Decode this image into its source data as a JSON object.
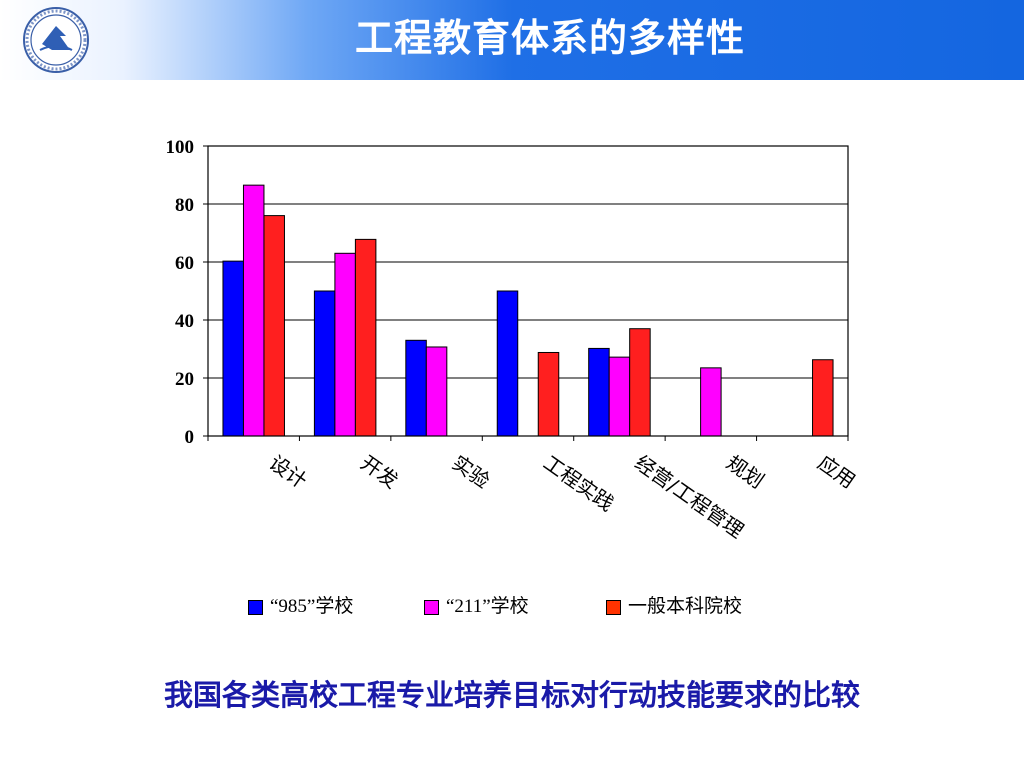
{
  "header": {
    "title": "工程教育体系的多样性"
  },
  "caption": "我国各类高校工程专业培养目标对行动技能要求的比较",
  "legend": {
    "items": [
      {
        "label": "“985”学校",
        "color": "#0000ff"
      },
      {
        "label": "“211”学校",
        "color": "#ff00ff"
      },
      {
        "label": "一般本科院校",
        "color": "#ff1f1f"
      }
    ]
  },
  "chart_data": {
    "type": "bar",
    "categories": [
      "设计",
      "开发",
      "实验",
      "工程实践",
      "经营/工程管理",
      "规划",
      "应用"
    ],
    "series": [
      {
        "name": "“985”学校",
        "color": "#0000ff",
        "values": [
          60.3,
          50.0,
          33.0,
          50.0,
          30.2,
          null,
          null
        ]
      },
      {
        "name": "“211”学校",
        "color": "#ff00ff",
        "values": [
          86.5,
          63.0,
          30.7,
          null,
          27.2,
          23.5,
          null
        ]
      },
      {
        "name": "一般本科院校",
        "color": "#ff1f1f",
        "values": [
          76.0,
          67.8,
          null,
          28.8,
          37.0,
          null,
          26.3
        ]
      }
    ],
    "ylim": [
      0,
      100
    ],
    "yticks": [
      0,
      20,
      40,
      60,
      80,
      100
    ],
    "grid": true,
    "legend_position": "bottom"
  }
}
